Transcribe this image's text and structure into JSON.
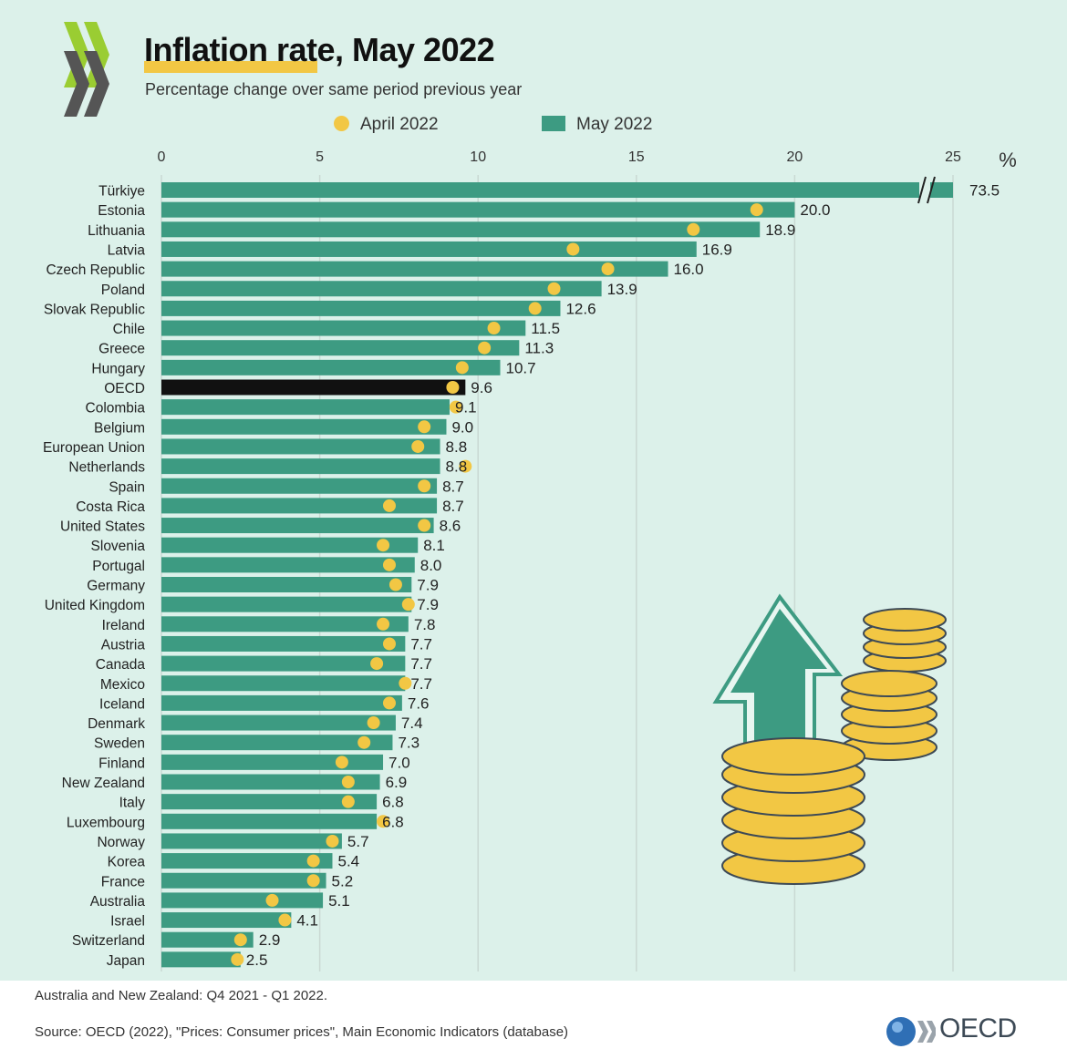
{
  "title": "Inflation rate, May 2022",
  "subtitle": "Percentage change over same period previous year",
  "legend": {
    "april": "April 2022",
    "may": "May 2022"
  },
  "colors": {
    "bar": "#3d9b82",
    "highlight_bar": "#111111",
    "dot": "#f2c744",
    "panel": "#dcf1ea"
  },
  "footnote": "Australia and New Zealand: Q4 2021 - Q1 2022.",
  "source": "Source: OECD (2022), \"Prices: Consumer prices\", Main Economic Indicators (database)",
  "brand": "OECD",
  "chart_data": {
    "type": "bar",
    "orientation": "horizontal",
    "title": "Inflation rate, May 2022",
    "unit": "%",
    "xlim": [
      0,
      25
    ],
    "xticks": [
      0,
      5,
      10,
      15,
      20,
      25
    ],
    "axis_break": "Türkiye bar truncated at 25 (value 73.5)",
    "highlight": "OECD",
    "categories": [
      "Türkiye",
      "Estonia",
      "Lithuania",
      "Latvia",
      "Czech Republic",
      "Poland",
      "Slovak Republic",
      "Chile",
      "Greece",
      "Hungary",
      "OECD",
      "Colombia",
      "Belgium",
      "European Union",
      "Netherlands",
      "Spain",
      "Costa Rica",
      "United States",
      "Slovenia",
      "Portugal",
      "Germany",
      "United Kingdom",
      "Ireland",
      "Austria",
      "Canada",
      "Mexico",
      "Iceland",
      "Denmark",
      "Sweden",
      "Finland",
      "New Zealand",
      "Italy",
      "Luxembourg",
      "Norway",
      "Korea",
      "France",
      "Australia",
      "Israel",
      "Switzerland",
      "Japan"
    ],
    "series": [
      {
        "name": "May 2022",
        "marker": "bar",
        "values": [
          73.5,
          20.0,
          18.9,
          16.9,
          16.0,
          13.9,
          12.6,
          11.5,
          11.3,
          10.7,
          9.6,
          9.1,
          9.0,
          8.8,
          8.8,
          8.7,
          8.7,
          8.6,
          8.1,
          8.0,
          7.9,
          7.9,
          7.8,
          7.7,
          7.7,
          7.7,
          7.6,
          7.4,
          7.3,
          7.0,
          6.9,
          6.8,
          6.8,
          5.7,
          5.4,
          5.2,
          5.1,
          4.1,
          2.9,
          2.5
        ],
        "labels": [
          "73.5",
          "20.0",
          "18.9",
          "16.9",
          "16.0",
          "13.9",
          "12.6",
          "11.5",
          "11.3",
          "10.7",
          "9.6",
          "9.1",
          "9.0",
          "8.8",
          "8.8",
          "8.7",
          "8.7",
          "8.6",
          "8.1",
          "8.0",
          "7.9",
          "7.9",
          "7.8",
          "7.7",
          "7.7",
          "7.7",
          "7.6",
          "7.4",
          "7.3",
          "7.0",
          "6.9",
          "6.8",
          "6.8",
          "5.7",
          "5.4",
          "5.2",
          "5.1",
          "4.1",
          "2.9",
          "2.5"
        ]
      },
      {
        "name": "April 2022",
        "marker": "dot",
        "values": [
          null,
          18.8,
          16.8,
          13.0,
          14.1,
          12.4,
          11.8,
          10.5,
          10.2,
          9.5,
          9.2,
          9.3,
          8.3,
          8.1,
          9.6,
          8.3,
          7.2,
          8.3,
          7.0,
          7.2,
          7.4,
          7.8,
          7.0,
          7.2,
          6.8,
          7.7,
          7.2,
          6.7,
          6.4,
          5.7,
          5.9,
          5.9,
          7.0,
          5.4,
          4.8,
          4.8,
          3.5,
          3.9,
          2.5,
          2.4
        ]
      }
    ]
  }
}
